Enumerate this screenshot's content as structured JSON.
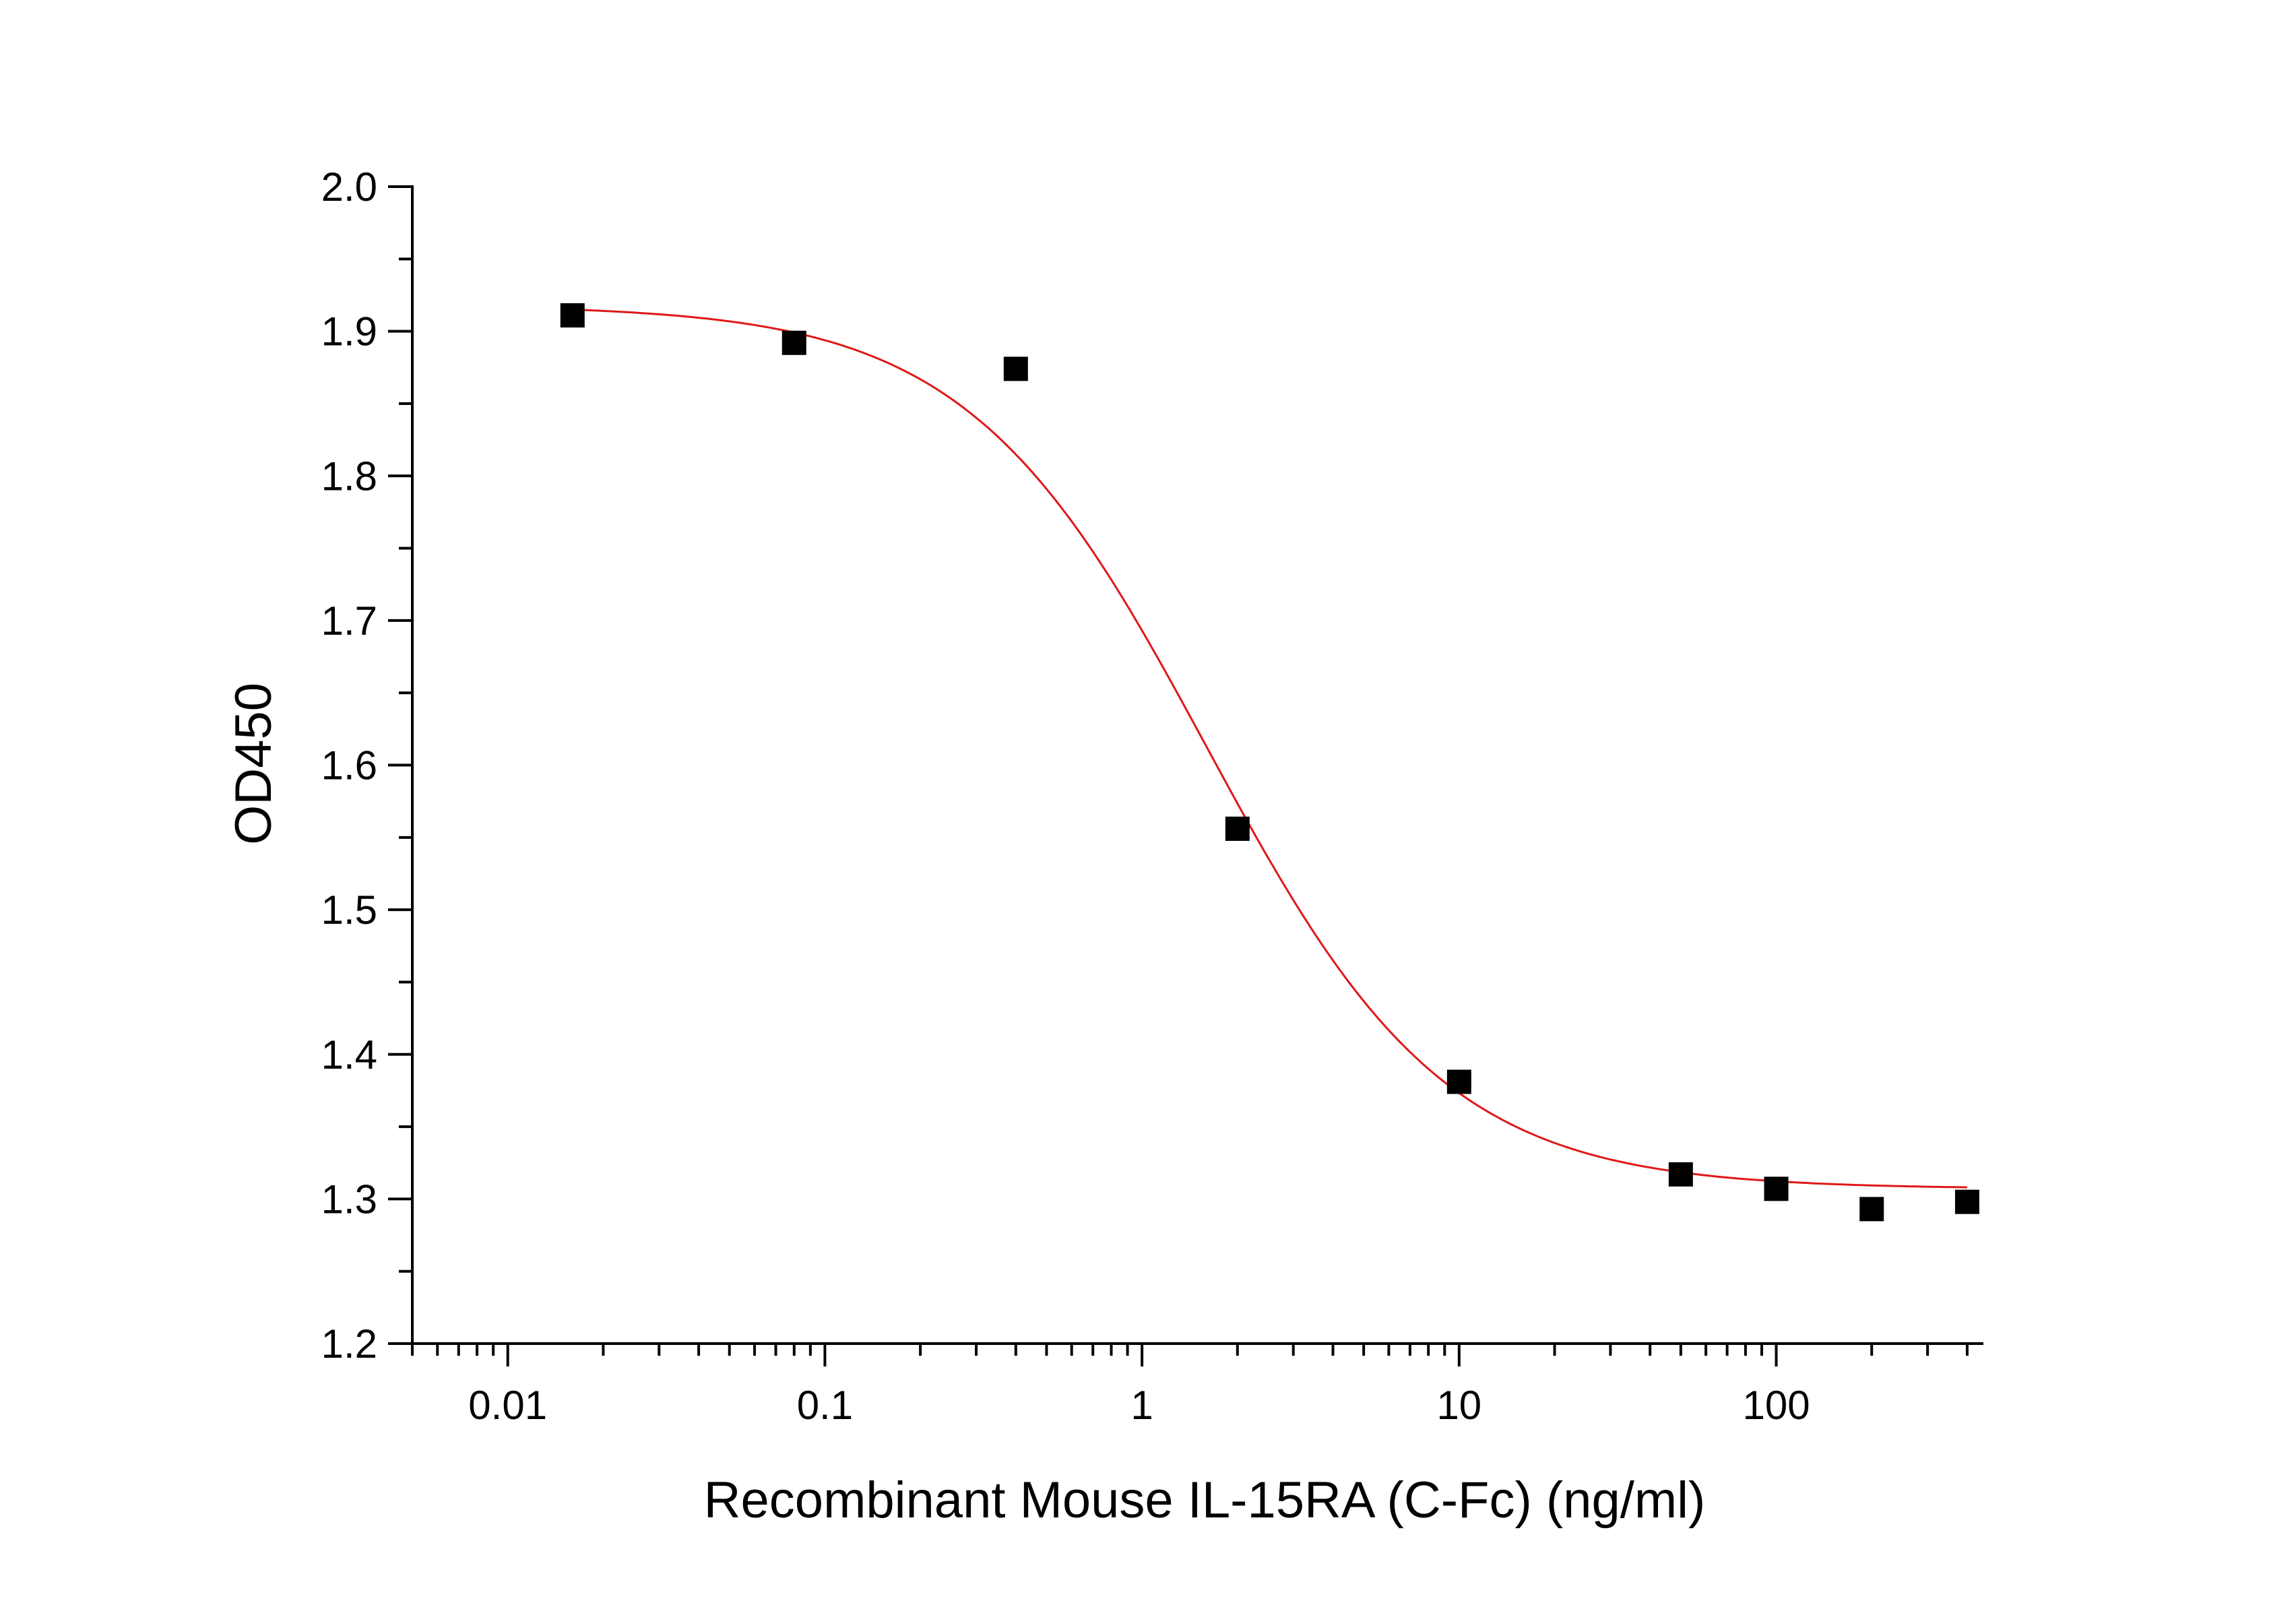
{
  "chart_data": {
    "type": "scatter",
    "title": "",
    "xlabel": "Recombinant Mouse IL-15RA (C-Fc) (ng/ml)",
    "ylabel": "OD450",
    "x_scale": "log",
    "xlim": [
      0.005,
      450
    ],
    "ylim": [
      1.2,
      2.0
    ],
    "x_ticks": [
      0.01,
      0.1,
      1,
      10,
      100
    ],
    "x_tick_labels": [
      "0.01",
      "0.1",
      "1",
      "10",
      "100"
    ],
    "y_ticks": [
      1.2,
      1.3,
      1.4,
      1.5,
      1.6,
      1.7,
      1.8,
      1.9,
      2.0
    ],
    "y_tick_labels": [
      "1.2",
      "1.3",
      "1.4",
      "1.5",
      "1.6",
      "1.7",
      "1.8",
      "1.9",
      "2.0"
    ],
    "grid": false,
    "legend": "none",
    "series": [
      {
        "type": "scatter",
        "marker": "square",
        "color": "#000000",
        "x": [
          0.016,
          0.08,
          0.4,
          2,
          10,
          50,
          100,
          200,
          400
        ],
        "y": [
          1.911,
          1.892,
          1.874,
          1.556,
          1.381,
          1.317,
          1.307,
          1.293,
          1.298
        ]
      },
      {
        "type": "line",
        "color": "#e01818",
        "curve": "four-parameter logistic fit",
        "params": {
          "top": 1.918,
          "bottom": 1.307,
          "ec50": 1.6,
          "hill": 1.15
        }
      }
    ]
  }
}
